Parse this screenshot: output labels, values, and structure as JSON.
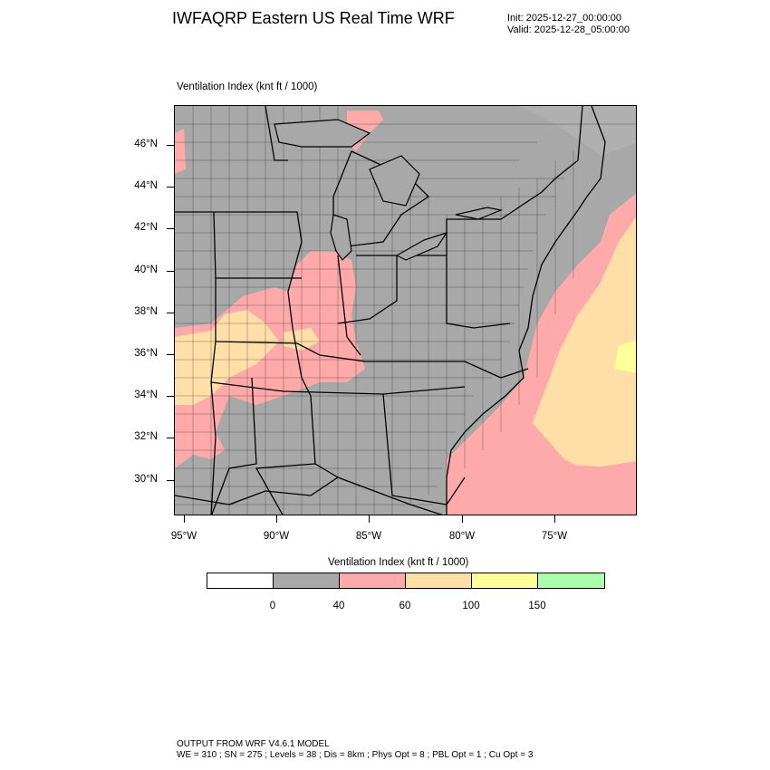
{
  "header": {
    "title": "IWFAQRP Eastern US Real Time WRF",
    "init": "Init: 2025-12-27_00:00:00",
    "valid": "Valid: 2025-12-28_05:00:00"
  },
  "field_label": "Ventilation Index   (knt ft / 1000)",
  "map": {
    "lat_labels": [
      "46°N",
      "44°N",
      "42°N",
      "40°N",
      "38°N",
      "36°N",
      "34°N",
      "32°N",
      "30°N"
    ],
    "lon_labels": [
      "95°W",
      "90°W",
      "85°W",
      "80°W",
      "75°W"
    ],
    "colors": {
      "land_low": "#a8a8a8",
      "band_40_60": "#ffaaaa",
      "band_60_100": "#ffdfa8",
      "band_100_150": "#ffff99",
      "band_150_plus": "#aaffaa",
      "border": "#000000"
    }
  },
  "colorbar": {
    "title": "Ventilation Index  (knt ft / 1000)",
    "colors": [
      "#ffffff",
      "#a8a8a8",
      "#ffaaaa",
      "#ffdfa8",
      "#ffff99",
      "#aaffaa"
    ],
    "ticks": [
      "0",
      "40",
      "60",
      "100",
      "150"
    ]
  },
  "footer": {
    "line1": "OUTPUT FROM WRF V4.6.1 MODEL",
    "line2": "WE = 310 ; SN = 275 ; Levels = 38 ; Dis = 8km ; Phys Opt = 8 ; PBL Opt = 1 ; Cu Opt = 3"
  }
}
